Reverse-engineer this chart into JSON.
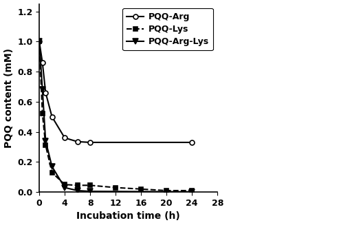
{
  "title": "",
  "xlabel": "Incubation time (h)",
  "ylabel": "PQQ content (mM)",
  "xlim": [
    0,
    28
  ],
  "ylim": [
    0,
    1.25
  ],
  "xticks": [
    0,
    4,
    8,
    12,
    16,
    20,
    24,
    28
  ],
  "yticks": [
    0.0,
    0.2,
    0.4,
    0.6,
    0.8,
    1.0,
    1.2
  ],
  "series": {
    "PQQ-Arg": {
      "x": [
        0,
        0.5,
        1,
        2,
        4,
        6,
        8,
        24
      ],
      "y": [
        1.0,
        0.86,
        0.66,
        0.5,
        0.36,
        0.335,
        0.33,
        0.33
      ],
      "color": "#000000",
      "linestyle": "-",
      "marker": "o",
      "markerfacecolor": "white",
      "markersize": 5,
      "linewidth": 1.5
    },
    "PQQ-Lys": {
      "x": [
        0,
        0.5,
        1,
        2,
        4,
        6,
        8,
        12,
        16,
        20,
        24
      ],
      "y": [
        1.0,
        0.52,
        0.31,
        0.13,
        0.05,
        0.045,
        0.045,
        0.03,
        0.02,
        0.01,
        0.01
      ],
      "color": "#000000",
      "linestyle": "--",
      "marker": "s",
      "markerfacecolor": "#000000",
      "markersize": 5,
      "linewidth": 1.5
    },
    "PQQ-Arg-Lys": {
      "x": [
        0,
        0.5,
        1,
        2,
        4,
        6,
        8,
        24
      ],
      "y": [
        1.0,
        0.68,
        0.34,
        0.17,
        0.03,
        0.01,
        0.005,
        0.002
      ],
      "color": "#000000",
      "linestyle": "-",
      "marker": "v",
      "markerfacecolor": "#000000",
      "markersize": 6,
      "linewidth": 1.5
    }
  },
  "legend_labels": [
    "PQQ-Arg",
    "PQQ-Lys",
    "PQQ-Arg-Lys"
  ],
  "background_color": "#ffffff",
  "font_family": "DejaVu Sans"
}
